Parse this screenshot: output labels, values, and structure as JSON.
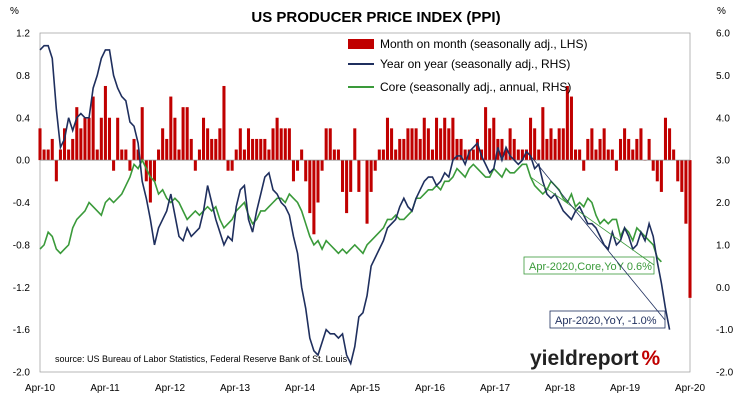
{
  "chart_data": {
    "type": "bar+line",
    "title": "US PRODUCER PRICE INDEX (PPI)",
    "left_unit": "%",
    "right_unit": "%",
    "left_axis": {
      "min": -2.0,
      "max": 1.2,
      "ticks": [
        "1.2",
        "0.8",
        "0.4",
        "0.0",
        "-0.4",
        "-0.8",
        "-1.2",
        "-1.6",
        "-2.0"
      ],
      "tick_values": [
        1.2,
        0.8,
        0.4,
        0.0,
        -0.4,
        -0.8,
        -1.2,
        -1.6,
        -2.0
      ]
    },
    "right_axis": {
      "min": -2.0,
      "max": 6.0,
      "ticks": [
        "6.0",
        "5.0",
        "4.0",
        "3.0",
        "2.0",
        "1.0",
        "0.0",
        "-1.0",
        "-2.0"
      ],
      "tick_values": [
        6,
        5,
        4,
        3,
        2,
        1,
        0,
        -1,
        -2
      ]
    },
    "x_axis": {
      "start": "Apr-10",
      "end": "Apr-20",
      "labels": [
        "Apr-10",
        "Apr-11",
        "Apr-12",
        "Apr-13",
        "Apr-14",
        "Apr-15",
        "Apr-16",
        "Apr-17",
        "Apr-18",
        "Apr-19",
        "Apr-20"
      ]
    },
    "grid": false,
    "legend_position": "top-right",
    "series": [
      {
        "name": "Month on month (seasonally adj., LHS)",
        "type": "bar",
        "color": "#c00000",
        "axis": "left",
        "values": [
          0.3,
          0.1,
          0.1,
          0.2,
          -0.2,
          0.1,
          0.3,
          0.1,
          0.2,
          0.5,
          0.3,
          0.4,
          0.4,
          0.6,
          0.1,
          0.4,
          0.7,
          0.4,
          -0.1,
          0.4,
          0.1,
          0.1,
          -0.1,
          0.2,
          0.1,
          0.5,
          -0.2,
          -0.4,
          -0.2,
          0.1,
          0.3,
          0.2,
          0.6,
          0.4,
          0.1,
          0.5,
          0.5,
          0.2,
          -0.1,
          0.1,
          0.4,
          0.3,
          0.2,
          0.2,
          0.3,
          0.7,
          -0.1,
          -0.1,
          0.1,
          0.3,
          0.1,
          0.3,
          0.2,
          0.2,
          0.2,
          0.2,
          0.1,
          0.3,
          0.4,
          0.3,
          0.3,
          0.3,
          -0.2,
          -0.1,
          0.1,
          -0.2,
          -0.5,
          -0.7,
          -0.4,
          -0.1,
          0.3,
          0.3,
          0.1,
          0.1,
          -0.3,
          -0.5,
          -0.3,
          0.3,
          -0.3,
          0.0,
          -0.6,
          -0.3,
          -0.1,
          0.1,
          0.1,
          0.4,
          0.3,
          0.1,
          0.2,
          0.2,
          0.3,
          0.3,
          0.3,
          0.2,
          0.4,
          0.3,
          0.1,
          0.4,
          0.3,
          0.4,
          0.3,
          0.4,
          0.2,
          0.2,
          0.1,
          0.1,
          0.1,
          0.2,
          0.1,
          0.5,
          0.3,
          0.4,
          0.2,
          0.2,
          0.1,
          0.3,
          0.2,
          0.1,
          0.1,
          0.1,
          0.4,
          0.3,
          0.1,
          0.5,
          0.2,
          0.3,
          0.2,
          0.3,
          0.3,
          0.7,
          0.6,
          0.1,
          0.1,
          -0.1,
          0.2,
          0.3,
          0.1,
          0.2,
          0.3,
          0.1,
          0.1,
          -0.1,
          0.2,
          0.3,
          0.2,
          0.1,
          0.2,
          0.3,
          0.0,
          0.2,
          -0.1,
          -0.2,
          -0.3,
          0.4,
          0.3,
          0.1,
          -0.2,
          -0.3,
          -0.6,
          -1.3
        ]
      },
      {
        "name": "Year on year (seasonally adj., RHS)",
        "type": "line",
        "color": "#1f2f5e",
        "axis": "right",
        "values": [
          5.6,
          5.7,
          5.7,
          5.4,
          4.2,
          3.3,
          3.5,
          4.0,
          3.7,
          4.0,
          4.1,
          4.0,
          4.0,
          4.7,
          5.0,
          5.4,
          5.6,
          5.6,
          5.0,
          4.7,
          4.5,
          4.4,
          3.9,
          3.8,
          3.4,
          2.5,
          2.1,
          1.6,
          1.0,
          1.4,
          1.6,
          1.8,
          2.2,
          1.7,
          1.2,
          1.1,
          1.4,
          1.2,
          1.3,
          1.4,
          1.8,
          2.4,
          2.0,
          1.6,
          1.3,
          1.0,
          1.2,
          1.1,
          1.9,
          2.3,
          2.4,
          1.6,
          1.3,
          1.8,
          2.2,
          2.6,
          2.7,
          2.3,
          2.2,
          2.0,
          1.9,
          1.7,
          1.2,
          0.8,
          0.0,
          -0.5,
          -1.2,
          -1.5,
          -1.6,
          -1.3,
          -1.0,
          -1.1,
          -1.1,
          -1.2,
          -1.1,
          -1.6,
          -1.8,
          -1.4,
          -0.7,
          -0.6,
          -0.2,
          0.5,
          0.7,
          0.9,
          1.1,
          1.4,
          1.5,
          1.6,
          1.9,
          2.1,
          1.9,
          1.8,
          2.1,
          2.3,
          2.5,
          2.6,
          2.6,
          2.4,
          2.5,
          2.7,
          2.6,
          3.0,
          3.1,
          3.1,
          2.9,
          3.2,
          3.3,
          3.4,
          3.1,
          2.9,
          2.7,
          2.8,
          3.3,
          3.0,
          3.3,
          3.1,
          3.0,
          2.9,
          3.0,
          3.2,
          3.1,
          2.8,
          2.9,
          2.5,
          2.2,
          2.1,
          2.2,
          2.0,
          1.8,
          1.7,
          1.6,
          1.8,
          1.9,
          1.7,
          1.5,
          1.5,
          1.4,
          1.2,
          1.0,
          0.9,
          1.3,
          1.0,
          1.1,
          1.4,
          1.2,
          0.9,
          1.0,
          1.3,
          1.1,
          1.5,
          1.2,
          0.6,
          0.1,
          -0.5,
          -1.0
        ]
      },
      {
        "name": "Core (seasonally adj., annual, RHS)",
        "type": "line",
        "color": "#3a9a3a",
        "axis": "right",
        "values": [
          0.9,
          1.0,
          1.3,
          1.2,
          0.9,
          0.8,
          0.9,
          1.0,
          1.4,
          1.6,
          1.7,
          1.8,
          2.0,
          1.9,
          1.8,
          1.7,
          2.0,
          2.1,
          2.0,
          2.1,
          2.2,
          2.4,
          2.6,
          2.9,
          2.8,
          3.0,
          2.8,
          2.6,
          2.5,
          2.2,
          2.3,
          2.1,
          2.0,
          2.1,
          2.0,
          1.8,
          1.6,
          1.7,
          1.8,
          1.7,
          1.8,
          1.9,
          1.8,
          1.9,
          1.6,
          1.4,
          1.5,
          1.6,
          1.8,
          1.9,
          2.0,
          1.7,
          1.5,
          1.6,
          1.8,
          1.8,
          1.9,
          2.0,
          2.1,
          2.1,
          2.0,
          2.2,
          2.1,
          2.0,
          1.8,
          1.5,
          1.2,
          1.0,
          1.1,
          0.9,
          1.1,
          1.0,
          0.9,
          0.8,
          0.9,
          0.8,
          0.9,
          1.0,
          0.9,
          0.8,
          1.0,
          1.1,
          1.2,
          1.3,
          1.4,
          1.6,
          1.6,
          1.7,
          1.6,
          1.6,
          1.7,
          1.8,
          2.1,
          2.1,
          2.2,
          2.3,
          2.3,
          2.4,
          2.3,
          2.5,
          2.5,
          2.6,
          2.8,
          2.7,
          2.6,
          2.8,
          2.9,
          2.8,
          2.7,
          2.6,
          2.6,
          2.8,
          2.7,
          2.6,
          2.8,
          2.7,
          2.7,
          2.8,
          2.9,
          2.9,
          2.6,
          2.4,
          2.3,
          2.2,
          2.3,
          2.5,
          2.4,
          2.3,
          2.1,
          2.0,
          2.2,
          1.9,
          2.0,
          1.9,
          2.1,
          2.0,
          1.7,
          1.5,
          1.6,
          1.5,
          1.6,
          1.6,
          1.2,
          1.4,
          1.3,
          1.1,
          1.4,
          1.3,
          1.2,
          1.1,
          1.0,
          0.7,
          0.6
        ]
      }
    ],
    "annotations": [
      {
        "text": "Apr-2020,Core,YoY 0.6%",
        "color": "#3a9a3a",
        "target_series": 2,
        "target_index": 120
      },
      {
        "text": "Apr-2020,YoY, -1.0%",
        "color": "#1f2f5e",
        "target_series": 1,
        "target_index": 120
      }
    ],
    "source": "source: US Bureau of Labor Statistics, Federal Reserve Bank of St. Louis"
  },
  "brand": {
    "name": "yieldreport",
    "symbol": "%",
    "color_text": "#222222",
    "color_symbol": "#c00000"
  }
}
